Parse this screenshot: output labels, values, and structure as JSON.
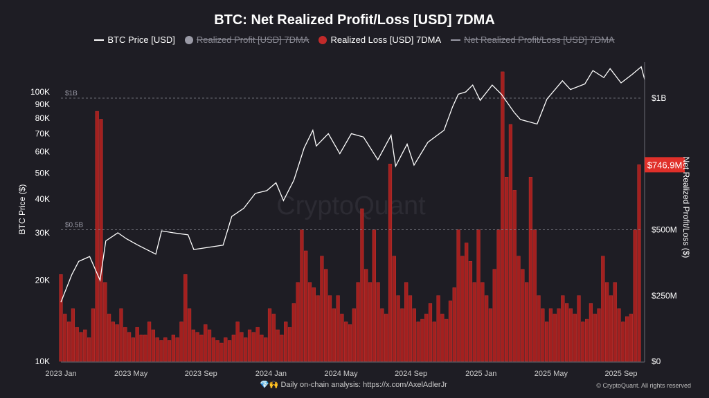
{
  "chart_data": {
    "type": "bar+line",
    "title": "BTC: Net Realized Profit/Loss [USD] 7DMA",
    "legend": [
      {
        "name": "BTC Price [USD]",
        "color": "#ffffff",
        "active": true,
        "marker": "line"
      },
      {
        "name": "Realized Profit [USD] 7DMA",
        "color": "#9a9aa6",
        "active": false,
        "marker": "dot"
      },
      {
        "name": "Realized Loss [USD] 7DMA",
        "color": "#c22a2a",
        "active": true,
        "marker": "dot"
      },
      {
        "name": "Net Realized Profit/Loss [USD] 7DMA",
        "color": "#9a9aa6",
        "active": false,
        "marker": "line"
      }
    ],
    "legend_placement": "top-center",
    "ylabel_left": "BTC Price ($)",
    "ylabel_right": "Net Realized Profit/Loss ($)",
    "left_axis": {
      "scale": "log",
      "range": [
        10000,
        150000
      ],
      "ticks": [
        10000,
        20000,
        30000,
        40000,
        50000,
        60000,
        70000,
        80000,
        90000,
        100000
      ],
      "tick_labels": [
        "10K",
        "20K",
        "30K",
        "40K",
        "50K",
        "60K",
        "70K",
        "80K",
        "90K",
        "100K"
      ]
    },
    "right_axis": {
      "scale": "linear",
      "unit": "USD millions",
      "range": [
        0,
        1200
      ],
      "ticks": [
        0,
        250,
        500,
        1000
      ],
      "tick_labels": [
        "$0",
        "$250M",
        "$500M",
        "$1B"
      ]
    },
    "x_ticks": [
      "2023 Jan",
      "2023 May",
      "2023 Sep",
      "2024 Jan",
      "2024 May",
      "2024 Sep",
      "2025 Jan",
      "2025 May",
      "2025 Sep"
    ],
    "reference_lines": [
      {
        "value": 1000,
        "label": "$1B"
      },
      {
        "value": 500,
        "label": "$0.5B"
      }
    ],
    "last_value_label": "$746.9M",
    "accent": "#e0302a",
    "watermark": "CryptoQuant",
    "price": [
      [
        "2023-01-01",
        16600
      ],
      [
        "2023-01-20",
        21000
      ],
      [
        "2023-02-01",
        23500
      ],
      [
        "2023-02-20",
        24500
      ],
      [
        "2023-03-10",
        20000
      ],
      [
        "2023-03-20",
        28000
      ],
      [
        "2023-04-10",
        30000
      ],
      [
        "2023-04-25",
        28500
      ],
      [
        "2023-05-15",
        27000
      ],
      [
        "2023-06-15",
        25000
      ],
      [
        "2023-06-25",
        30500
      ],
      [
        "2023-07-15",
        30000
      ],
      [
        "2023-08-10",
        29500
      ],
      [
        "2023-08-20",
        26000
      ],
      [
        "2023-09-15",
        26500
      ],
      [
        "2023-10-10",
        27000
      ],
      [
        "2023-10-25",
        34500
      ],
      [
        "2023-11-15",
        37000
      ],
      [
        "2023-12-05",
        42000
      ],
      [
        "2023-12-25",
        43000
      ],
      [
        "2024-01-10",
        46000
      ],
      [
        "2024-01-23",
        39500
      ],
      [
        "2024-02-10",
        47000
      ],
      [
        "2024-02-28",
        62000
      ],
      [
        "2024-03-14",
        72000
      ],
      [
        "2024-03-20",
        63000
      ],
      [
        "2024-04-10",
        70000
      ],
      [
        "2024-04-30",
        59000
      ],
      [
        "2024-05-20",
        70000
      ],
      [
        "2024-06-10",
        68000
      ],
      [
        "2024-07-05",
        56000
      ],
      [
        "2024-07-28",
        69000
      ],
      [
        "2024-08-05",
        53000
      ],
      [
        "2024-08-25",
        64000
      ],
      [
        "2024-09-06",
        53500
      ],
      [
        "2024-09-30",
        65000
      ],
      [
        "2024-10-28",
        72000
      ],
      [
        "2024-11-12",
        88000
      ],
      [
        "2024-11-22",
        98000
      ],
      [
        "2024-12-05",
        100000
      ],
      [
        "2024-12-17",
        106000
      ],
      [
        "2024-12-30",
        93000
      ],
      [
        "2025-01-20",
        106000
      ],
      [
        "2025-02-05",
        98000
      ],
      [
        "2025-02-27",
        84000
      ],
      [
        "2025-03-10",
        79000
      ],
      [
        "2025-04-08",
        76000
      ],
      [
        "2025-04-25",
        94000
      ],
      [
        "2025-05-22",
        110000
      ],
      [
        "2025-06-05",
        102000
      ],
      [
        "2025-06-30",
        107000
      ],
      [
        "2025-07-14",
        120000
      ],
      [
        "2025-08-02",
        113000
      ],
      [
        "2025-08-13",
        122000
      ],
      [
        "2025-09-01",
        108000
      ],
      [
        "2025-09-20",
        116000
      ],
      [
        "2025-10-06",
        124000
      ],
      [
        "2025-10-12",
        111000
      ]
    ],
    "realized_loss_weekly_musd": [
      330,
      180,
      150,
      200,
      130,
      110,
      120,
      90,
      200,
      950,
      920,
      300,
      180,
      150,
      140,
      200,
      130,
      110,
      90,
      130,
      100,
      100,
      150,
      120,
      90,
      80,
      90,
      80,
      100,
      90,
      150,
      330,
      200,
      120,
      110,
      100,
      140,
      120,
      90,
      80,
      70,
      90,
      80,
      100,
      150,
      110,
      90,
      120,
      110,
      130,
      100,
      90,
      200,
      180,
      120,
      100,
      150,
      130,
      220,
      300,
      500,
      420,
      300,
      280,
      250,
      400,
      350,
      250,
      200,
      250,
      180,
      150,
      140,
      200,
      300,
      580,
      350,
      300,
      500,
      300,
      200,
      180,
      750,
      400,
      250,
      200,
      300,
      250,
      200,
      150,
      160,
      180,
      220,
      150,
      250,
      180,
      160,
      230,
      280,
      500,
      400,
      450,
      380,
      300,
      500,
      300,
      250,
      200,
      350,
      500,
      1100,
      700,
      900,
      650,
      400,
      350,
      300,
      700,
      500,
      250,
      200,
      150,
      200,
      180,
      200,
      250,
      220,
      200,
      180,
      250,
      150,
      160,
      220,
      180,
      200,
      400,
      300,
      250,
      300,
      200,
      150,
      170,
      180,
      500,
      747
    ]
  },
  "footer": {
    "emoji": "💎🙌",
    "text": "Daily on-chain analysis: ",
    "link": "https://x.com/AxelAdlerJr",
    "copyright": "© CryptoQuant. All rights reserved"
  }
}
